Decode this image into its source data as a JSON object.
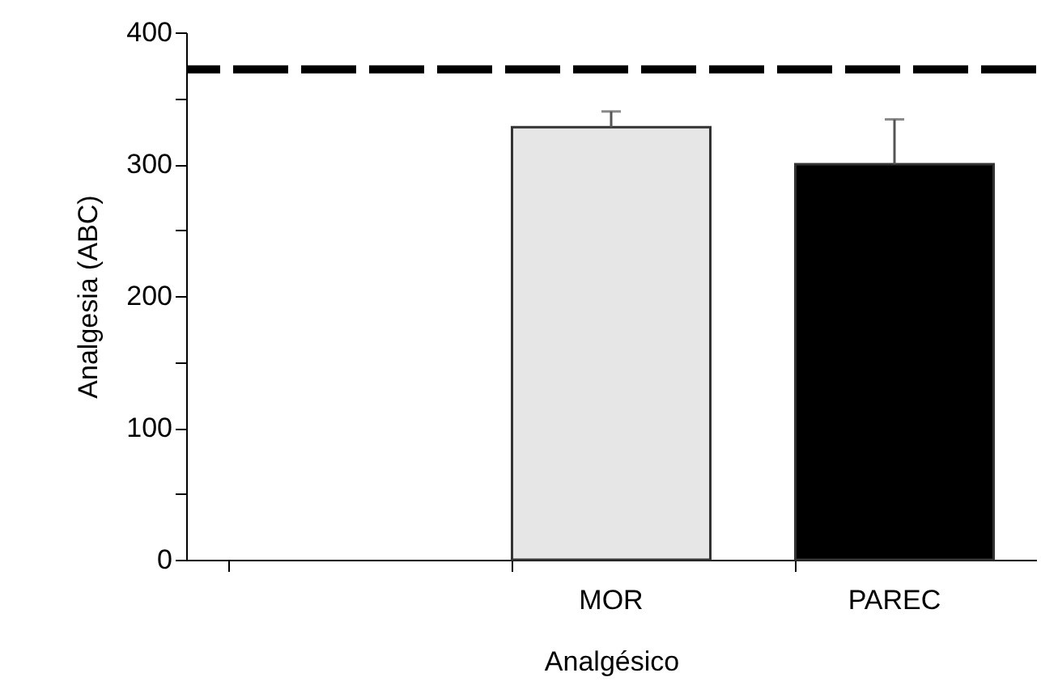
{
  "chart_data": {
    "type": "bar",
    "xlabel": "Analgésico",
    "ylabel": "Analgesia (ABC)",
    "categories": [
      null,
      "MOR",
      "PAREC"
    ],
    "values": [
      null,
      328,
      300
    ],
    "colors": [
      "#e6e6e6",
      "#e6e6e6",
      "#000000"
    ],
    "errors": [
      null,
      [
        328,
        340
      ],
      [
        300,
        334
      ]
    ],
    "ylim": [
      0,
      400
    ],
    "yticks": [
      0,
      {
        "value": 50,
        "label": null
      },
      100,
      {
        "value": 150,
        "label": null
      },
      200,
      {
        "value": 250,
        "label": null
      },
      300,
      {
        "value": 350,
        "label": null
      },
      400
    ],
    "ref_lines": [
      {
        "axis": "y",
        "value": 372,
        "color": "#000000",
        "line_style": "dashed"
      }
    ],
    "grid": false
  }
}
